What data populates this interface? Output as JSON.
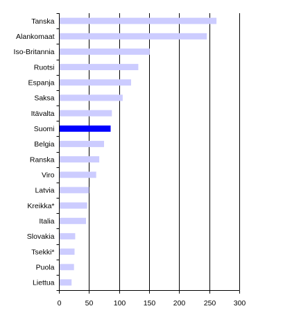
{
  "chart_data": {
    "type": "bar",
    "orientation": "horizontal",
    "categories": [
      "Tanska",
      "Alankomaat",
      "Iso-Britannia",
      "Ruotsi",
      "Espanja",
      "Saksa",
      "Itävalta",
      "Suomi",
      "Belgia",
      "Ranska",
      "Viro",
      "Latvia",
      "Kreikka*",
      "Italia",
      "Slovakia",
      "Tsekki*",
      "Puola",
      "Liettua"
    ],
    "values": [
      262,
      246,
      151,
      132,
      120,
      106,
      88,
      86,
      75,
      67,
      62,
      50,
      47,
      45,
      27,
      26,
      25,
      21
    ],
    "highlight_category": "Suomi",
    "colors": {
      "bar": "#ccccff",
      "highlight": "#0000ff",
      "grid": "#000000"
    },
    "title": "",
    "xlabel": "",
    "ylabel": "",
    "xlim": [
      0,
      300
    ],
    "xticks": [
      0,
      50,
      100,
      150,
      200,
      250,
      300
    ],
    "grid": "vertical",
    "legend": "none"
  }
}
